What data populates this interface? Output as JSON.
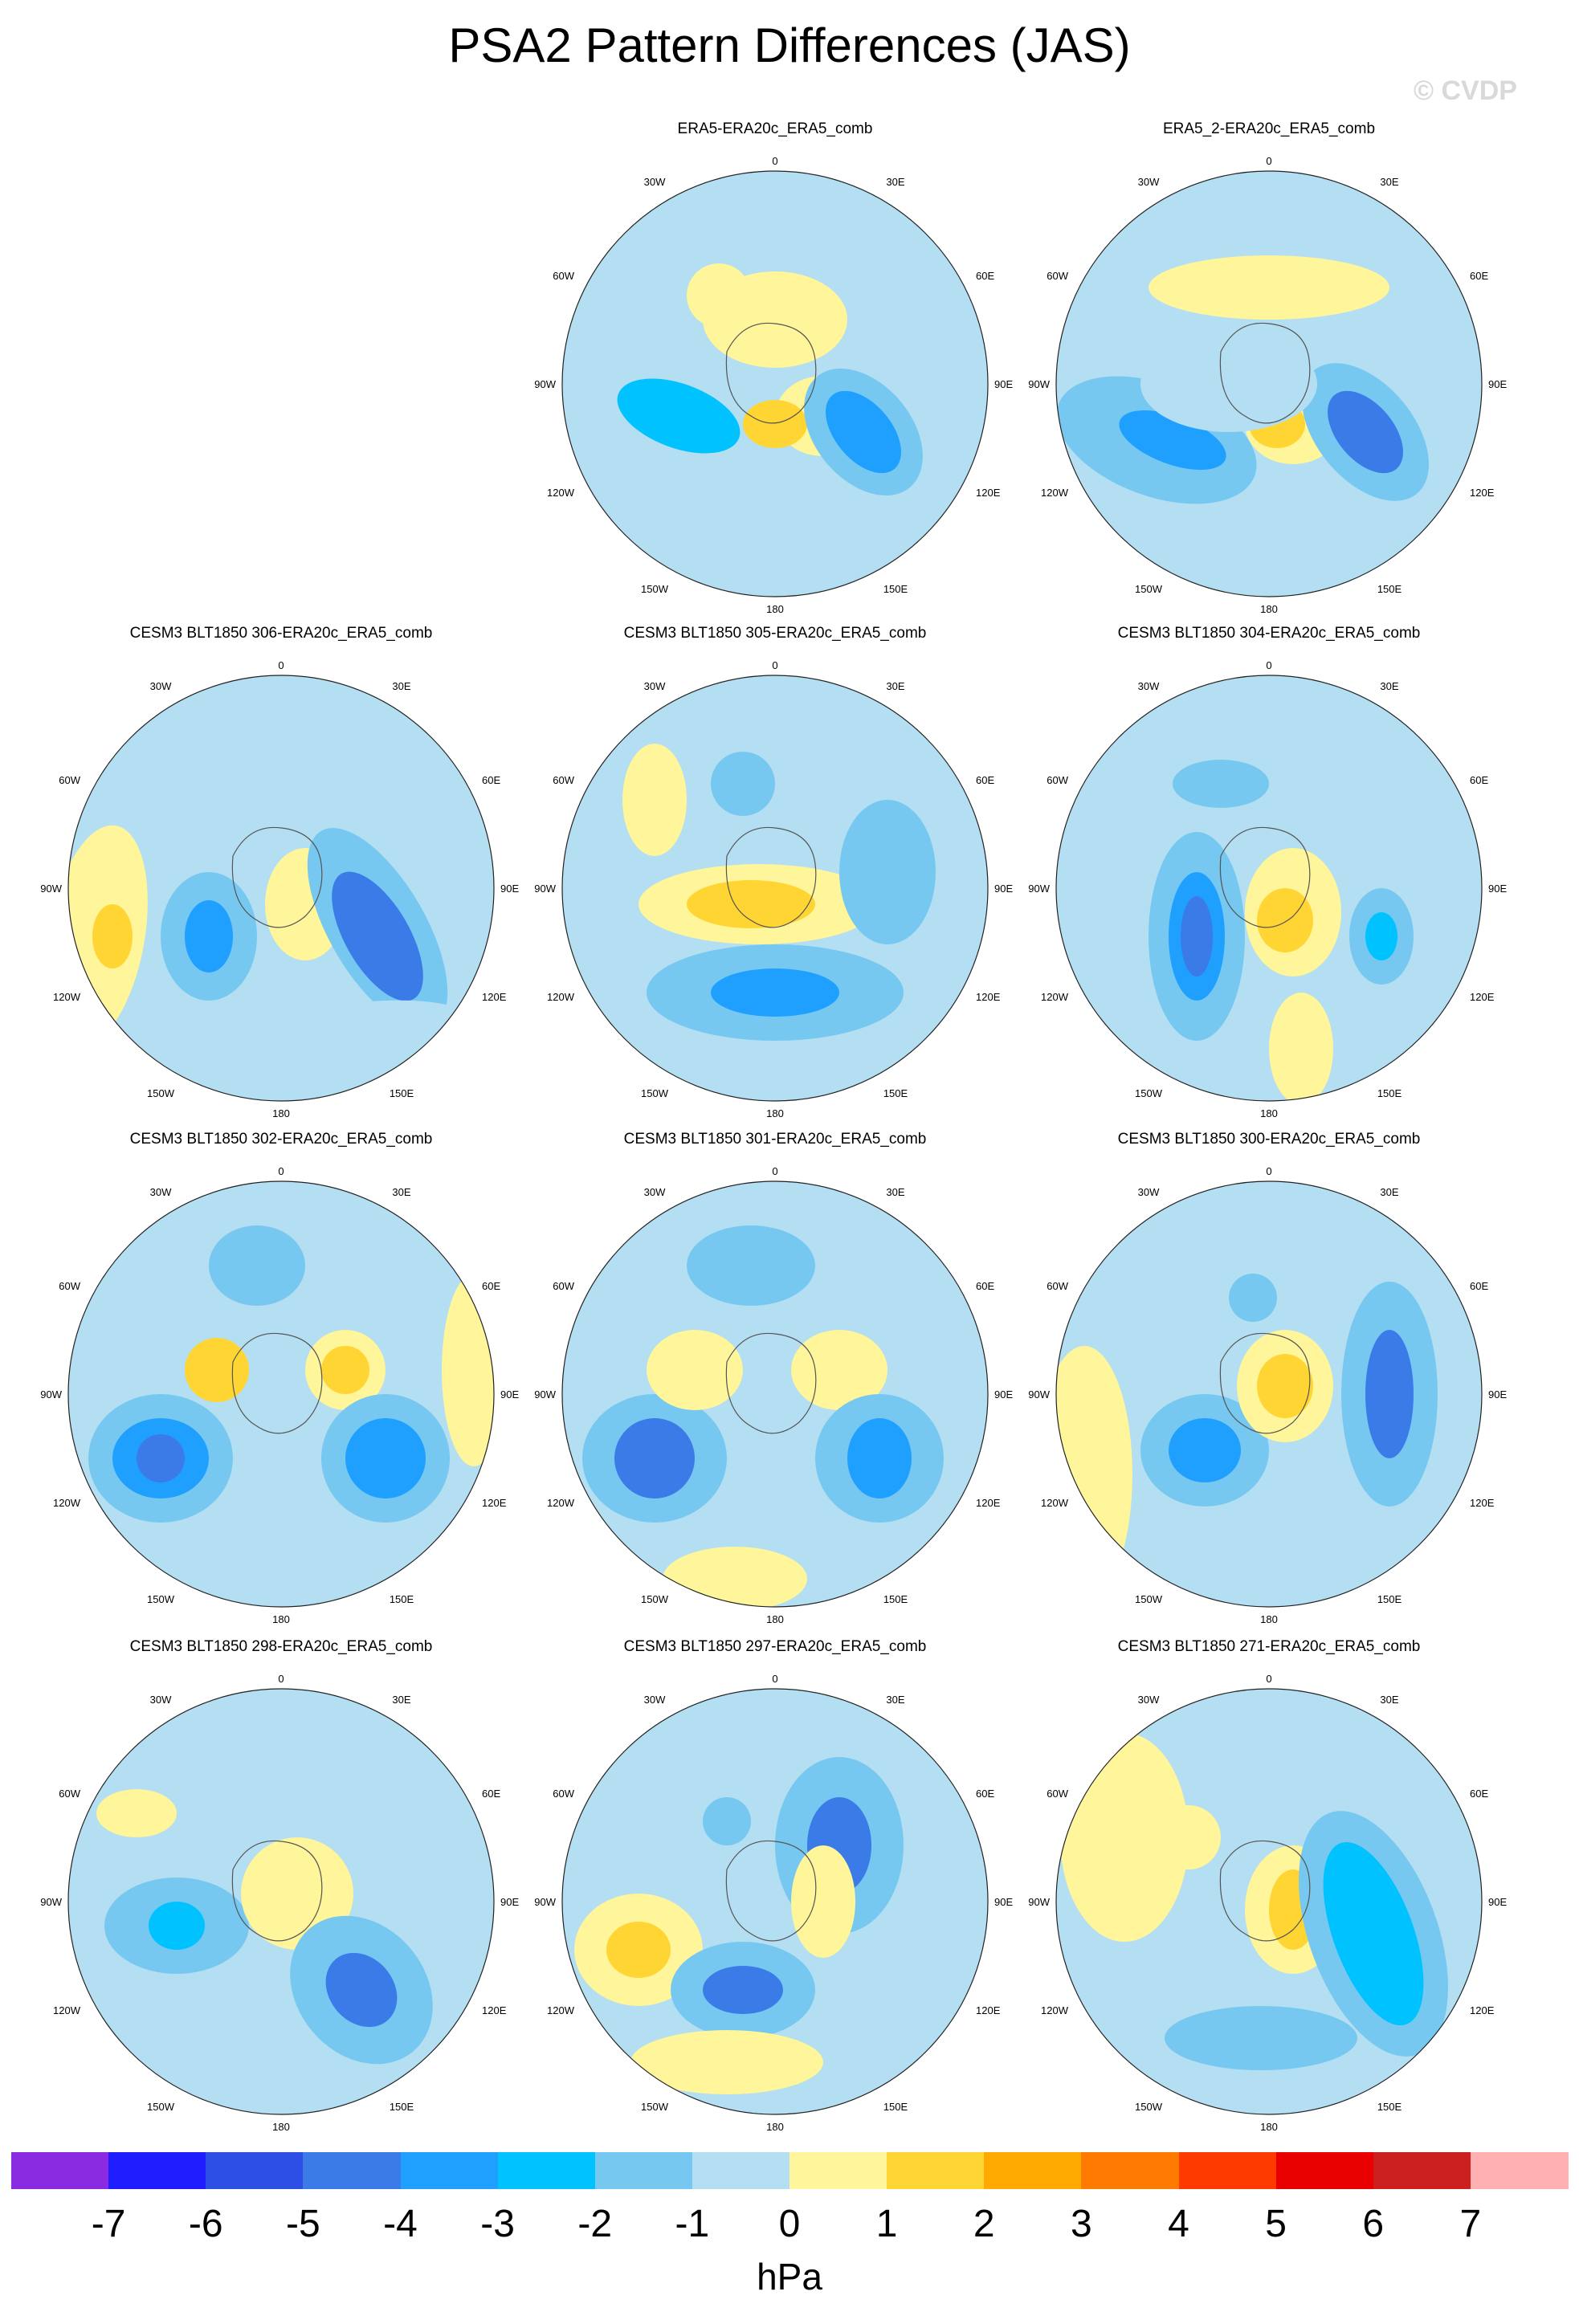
{
  "title": "PSA2 Pattern Differences (JAS)",
  "watermark": "© CVDP",
  "units": "hPa",
  "colorbar": {
    "colors": [
      "#8a2be2",
      "#1e1eff",
      "#2e4fe6",
      "#3a7be8",
      "#1fa0ff",
      "#00c2ff",
      "#76c8f0",
      "#b4def2",
      "#fff59a",
      "#ffd533",
      "#ffaa00",
      "#ff7a00",
      "#ff3a00",
      "#e80000",
      "#cc1f1f",
      "#ffb0b0"
    ],
    "labels": [
      "-7",
      "-6",
      "-5",
      "-4",
      "-3",
      "-2",
      "-1",
      "0",
      "1",
      "2",
      "3",
      "4",
      "5",
      "6",
      "7"
    ]
  },
  "map_labels": {
    "top": "0",
    "bottom": "180",
    "left": "90W",
    "right": "90E",
    "ul1": "30W",
    "ur1": "30E",
    "ul2": "60W",
    "ur2": "60E",
    "ll1": "120W",
    "lr1": "120E",
    "ll2": "150W",
    "lr2": "150E"
  },
  "panels": [
    {
      "title": "ERA5-ERA20c_ERA5_comb"
    },
    {
      "title": "ERA5_2-ERA20c_ERA5_comb"
    },
    {
      "title": "CESM3 BLT1850 306-ERA20c_ERA5_comb"
    },
    {
      "title": "CESM3 BLT1850 305-ERA20c_ERA5_comb"
    },
    {
      "title": "CESM3 BLT1850 304-ERA20c_ERA5_comb"
    },
    {
      "title": "CESM3 BLT1850 302-ERA20c_ERA5_comb"
    },
    {
      "title": "CESM3 BLT1850 301-ERA20c_ERA5_comb"
    },
    {
      "title": "CESM3 BLT1850 300-ERA20c_ERA5_comb"
    },
    {
      "title": "CESM3 BLT1850 298-ERA20c_ERA5_comb"
    },
    {
      "title": "CESM3 BLT1850 297-ERA20c_ERA5_comb"
    },
    {
      "title": "CESM3 BLT1850 271-ERA20c_ERA5_comb"
    }
  ]
}
